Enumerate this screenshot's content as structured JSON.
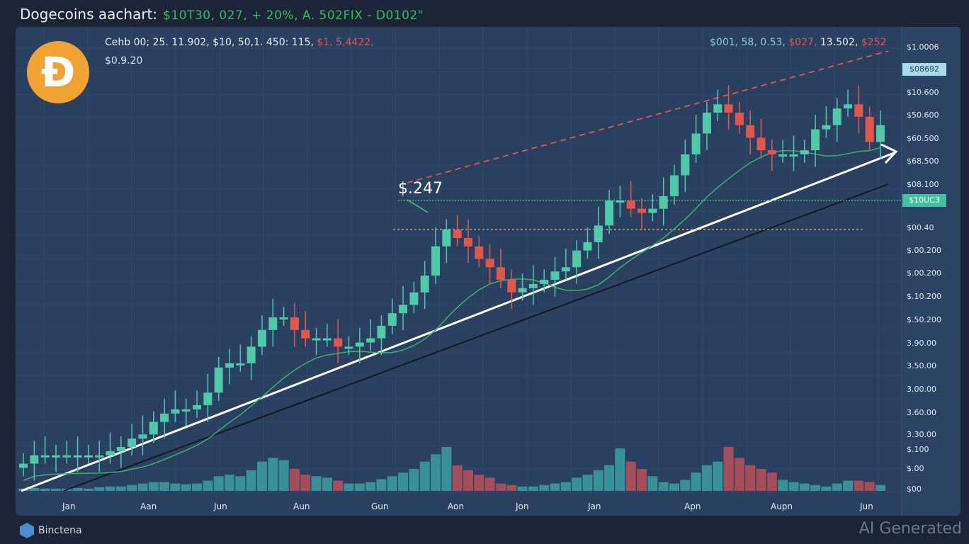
{
  "title": {
    "main": "Dogecoins aachart:",
    "sub": "$10T30,  027, + 20%,  A. 502FIX - D0102\""
  },
  "header": {
    "line1_white": "Cehb 00; 25. 11.902,  $10,  50,1. 450: 115,",
    "line1_red": "$1,  5,4422,",
    "line2": "$0.9.20",
    "right_teal": "$001, 58, 0.53,",
    "right_red1": "$027,",
    "right_white": "13.502,",
    "right_red2": "$252"
  },
  "logo": {
    "glyph": "Ð"
  },
  "annotation": "$.247",
  "y_labels": [
    "$1.0006",
    "$10.600",
    "$50.600",
    "$60.500",
    "$68.500",
    "$08.100",
    "$00.40",
    "$.00.200",
    "$.00.200",
    "$.10.200",
    "$.50.200",
    "3.90.00",
    "3.50.00",
    "3.00.00",
    "3.60.00",
    "3.30.00",
    "$.100",
    "$.00",
    "$00"
  ],
  "badges": {
    "top": "$08692",
    "green": "$10UC3"
  },
  "x_labels": [
    "Jan",
    "Aan",
    "Jun",
    "Aun",
    "Gun",
    "Aon",
    "Jon",
    "Jan",
    "Apn",
    "Aupn",
    "Jun"
  ],
  "footer": {
    "brand": "Binctena",
    "watermark": "AI Generated"
  },
  "colors": {
    "up": "#4fc9a8",
    "down": "#e2574c",
    "ma": "#37b36a",
    "trend": "#ffffff",
    "trend2": "#14181f",
    "resistance": "#e2574c"
  },
  "chart_data": {
    "type": "candlestick",
    "title": "Dogecoins aachart",
    "ylim": [
      0,
      100
    ],
    "first_open": 5,
    "close": [
      6,
      8,
      8,
      8,
      8,
      8,
      8,
      8,
      9,
      10,
      12,
      13,
      16,
      18,
      19,
      19,
      20,
      23,
      29,
      30,
      30,
      34,
      38,
      41,
      41,
      38,
      36,
      36,
      36,
      34,
      34,
      35,
      36,
      39,
      42,
      44,
      47,
      51,
      58,
      62,
      60,
      58,
      55,
      53,
      50,
      47,
      48,
      49,
      50,
      52,
      53,
      57,
      59,
      63,
      69,
      69,
      67,
      66,
      67,
      70,
      75,
      80,
      85,
      90,
      92,
      90,
      87,
      84,
      81,
      80,
      80,
      80,
      81,
      86,
      87,
      91,
      92,
      89,
      83,
      87
    ],
    "volume": [
      3,
      4,
      3,
      3,
      3,
      4,
      3,
      5,
      6,
      6,
      8,
      10,
      12,
      12,
      10,
      9,
      10,
      14,
      20,
      22,
      20,
      28,
      40,
      45,
      42,
      30,
      22,
      20,
      18,
      14,
      10,
      10,
      12,
      16,
      20,
      25,
      30,
      40,
      50,
      60,
      35,
      28,
      22,
      18,
      10,
      8,
      6,
      6,
      8,
      10,
      12,
      18,
      22,
      28,
      35,
      58,
      40,
      30,
      20,
      12,
      10,
      15,
      25,
      35,
      40,
      60,
      45,
      35,
      30,
      25,
      15,
      12,
      10,
      8,
      6,
      10,
      14,
      14,
      12,
      8
    ],
    "moving_average_period": 10,
    "legend": "none"
  }
}
